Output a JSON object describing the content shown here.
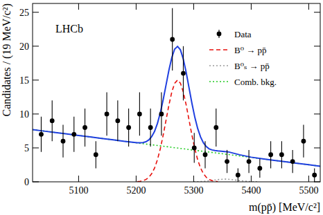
{
  "chart_data": {
    "type": "scatter",
    "x_label": "m(pp̄) [MeV/c²]",
    "y_label": "Candidates / (19 MeV/c²)",
    "annotations": [
      "LHCb"
    ],
    "xlim": [
      5020,
      5520
    ],
    "xticks": [
      5100,
      5200,
      5300,
      5400,
      5500
    ],
    "ylim": [
      0,
      26.3
    ],
    "yticks": [
      0,
      5,
      10,
      15,
      20,
      25
    ],
    "grid": false,
    "legend": "top-right",
    "series": [
      {
        "name": "Data",
        "type": "scatter",
        "marker": "circle",
        "color": "#000000",
        "x": [
          5035,
          5054,
          5073,
          5092,
          5111,
          5130,
          5149,
          5168,
          5187,
          5206,
          5225,
          5244,
          5263,
          5282,
          5301,
          5320,
          5339,
          5358,
          5377,
          5396,
          5415,
          5434,
          5453,
          5472,
          5491,
          5510
        ],
        "values": [
          7,
          9,
          6,
          7,
          8,
          4,
          10,
          9,
          8,
          10,
          8,
          10,
          21,
          16,
          5,
          4,
          8,
          3,
          1,
          3,
          2,
          4,
          4,
          3,
          6,
          1
        ],
        "errors": [
          2.6,
          3,
          2.4,
          2.6,
          2.8,
          2,
          3.2,
          3,
          2.8,
          3.2,
          2.8,
          3.2,
          4.6,
          4,
          2.2,
          2,
          2.8,
          1.7,
          1,
          1.7,
          1.4,
          2,
          2,
          1.7,
          2.4,
          1
        ]
      },
      {
        "type": "line",
        "line_style": "solid",
        "color": "#1f3fe0",
        "x": [
          5020,
          5040,
          5060,
          5080,
          5100,
          5120,
          5140,
          5160,
          5180,
          5202,
          5207,
          5212,
          5217,
          5222,
          5227,
          5232,
          5237,
          5242,
          5247,
          5252,
          5257,
          5262,
          5267,
          5272,
          5277,
          5282,
          5287,
          5292,
          5297,
          5302,
          5307,
          5312,
          5317,
          5322,
          5327,
          5332,
          5337,
          5342,
          5360,
          5380,
          5400,
          5420,
          5440,
          5460,
          5480,
          5500,
          5520
        ],
        "values": [
          7.7,
          7.48,
          7.27,
          7.05,
          6.84,
          6.62,
          6.4,
          6.19,
          5.97,
          5.76,
          5.76,
          5.79,
          5.91,
          6.17,
          6.65,
          7.44,
          8.6,
          10.17,
          12.11,
          14.29,
          16.46,
          18.32,
          19.57,
          19.97,
          19.46,
          18.1,
          16.14,
          13.85,
          11.57,
          9.52,
          7.86,
          6.61,
          5.74,
          5.19,
          4.86,
          4.7,
          4.61,
          4.56,
          4.42,
          3.99,
          3.63,
          3.38,
          3.16,
          2.95,
          2.73,
          2.52,
          2.3
        ]
      },
      {
        "name": "B⁰ → pp̄",
        "type": "line",
        "line_style": "dashed",
        "color": "#e8100c",
        "x": [
          5202,
          5207,
          5212,
          5217,
          5222,
          5227,
          5232,
          5237,
          5242,
          5247,
          5252,
          5257,
          5262,
          5267,
          5272,
          5277,
          5282,
          5287,
          5292,
          5297,
          5302,
          5307,
          5312,
          5317,
          5322,
          5327,
          5332,
          5337,
          5342
        ],
        "values": [
          0.03,
          0.08,
          0.17,
          0.34,
          0.66,
          1.19,
          2.03,
          3.25,
          4.87,
          6.87,
          9.1,
          11.33,
          13.24,
          14.54,
          15,
          14.54,
          13.24,
          11.33,
          9.1,
          6.87,
          4.87,
          3.25,
          2.03,
          1.19,
          0.66,
          0.34,
          0.17,
          0.08,
          0.03
        ]
      },
      {
        "name": "B⁰ₛ → pp̄",
        "type": "line",
        "line_style": "dotted",
        "color": "#9a9a9a",
        "x": [
          5300,
          5315,
          5330,
          5345,
          5355,
          5365,
          5380,
          5395,
          5410
        ],
        "values": [
          0.01,
          0.05,
          0.18,
          0.35,
          0.4,
          0.35,
          0.18,
          0.05,
          0.01
        ]
      },
      {
        "name": "Comb. bkg.",
        "type": "line",
        "line_style": "dotted",
        "color": "#22cc22",
        "x": [
          5020,
          5520
        ],
        "values": [
          7.7,
          2.3
        ]
      }
    ]
  }
}
